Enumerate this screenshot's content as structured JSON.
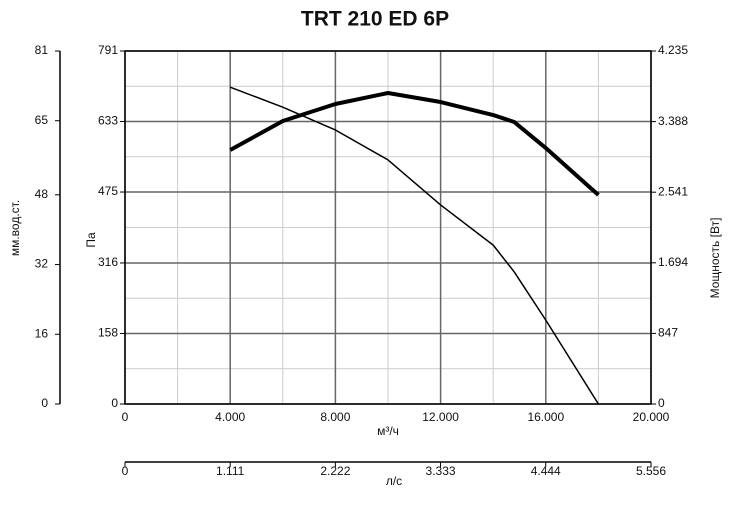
{
  "chart_data": {
    "type": "line",
    "title": "TRT 210 ED 6P",
    "x_label": "м³/ч",
    "y_label": "Па",
    "y2_label": "Мощность [Вт]",
    "y3_label": "мм.вод.ст.",
    "x2_label": "л/с",
    "x": [
      4000,
      6000,
      8000,
      10000,
      12000,
      14000,
      14800,
      16000,
      18000
    ],
    "series": [
      {
        "color": "#000000",
        "values": [
          710,
          665,
          614,
          547,
          446,
          356,
          296,
          188,
          0
        ]
      },
      {
        "color": "#000000",
        "axis": "y2",
        "values": [
          3047,
          3395,
          3599,
          3731,
          3623,
          3467,
          3383,
          3071,
          2507
        ]
      }
    ],
    "xlim": [
      0,
      20000
    ],
    "xticks": [
      0,
      {
        "value": 4000,
        "label": "4.000"
      },
      {
        "value": 8000,
        "label": "8.000"
      },
      {
        "value": 12000,
        "label": "12.000"
      },
      {
        "value": 16000,
        "label": "16.000"
      },
      {
        "value": 20000,
        "label": "20.000"
      }
    ],
    "ylim": [
      0,
      791
    ],
    "yticks": [
      0,
      158,
      316,
      475,
      633,
      791
    ],
    "y2lim": [
      0,
      4235
    ],
    "y2ticks": [
      0,
      847,
      {
        "value": 1694,
        "label": "1.694"
      },
      {
        "value": 2541,
        "label": "2.541"
      },
      {
        "value": 3388,
        "label": "3.388"
      },
      {
        "value": 4235,
        "label": "4.235"
      }
    ],
    "y3lim": [
      0,
      81
    ],
    "y3ticks": [
      0,
      16,
      32,
      48,
      65,
      81
    ],
    "x2lim": [
      0,
      5.556
    ],
    "x2ticks": [
      0,
      1.111,
      2.222,
      3.333,
      4.444,
      5.556
    ],
    "grid": true
  }
}
